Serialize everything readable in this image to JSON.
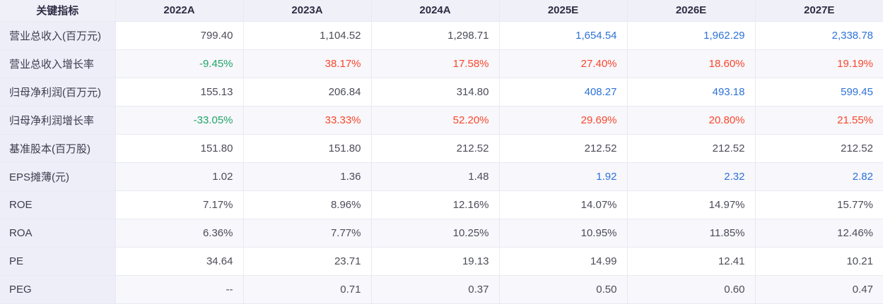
{
  "colors": {
    "positive_red": "#f9472a",
    "negative_green": "#21a567",
    "estimate_blue": "#2e72d8",
    "default_text": "#4c4c5a",
    "header_bg": "#f0f0f9",
    "first_col_bg": "#eeeef8",
    "alt_row_bg": "#f7f7fc"
  },
  "table": {
    "header": {
      "indicator_label": "关键指标",
      "year_columns": [
        "2022A",
        "2023A",
        "2024A",
        "2025E",
        "2026E",
        "2027E"
      ]
    },
    "rows": [
      {
        "label": "营业总收入(百万元)",
        "values": [
          "799.40",
          "1,104.52",
          "1,298.71",
          "1,654.54",
          "1,962.29",
          "2,338.78"
        ],
        "styles": [
          "d",
          "d",
          "d",
          "e",
          "e",
          "e"
        ]
      },
      {
        "label": "营业总收入增长率",
        "values": [
          "-9.45%",
          "38.17%",
          "17.58%",
          "27.40%",
          "18.60%",
          "19.19%"
        ],
        "styles": [
          "g",
          "r",
          "r",
          "r",
          "r",
          "r"
        ]
      },
      {
        "label": "归母净利润(百万元)",
        "values": [
          "155.13",
          "206.84",
          "314.80",
          "408.27",
          "493.18",
          "599.45"
        ],
        "styles": [
          "d",
          "d",
          "d",
          "e",
          "e",
          "e"
        ]
      },
      {
        "label": "归母净利润增长率",
        "values": [
          "-33.05%",
          "33.33%",
          "52.20%",
          "29.69%",
          "20.80%",
          "21.55%"
        ],
        "styles": [
          "g",
          "r",
          "r",
          "r",
          "r",
          "r"
        ]
      },
      {
        "label": "基准股本(百万股)",
        "values": [
          "151.80",
          "151.80",
          "212.52",
          "212.52",
          "212.52",
          "212.52"
        ],
        "styles": [
          "d",
          "d",
          "d",
          "d",
          "d",
          "d"
        ]
      },
      {
        "label": "EPS摊薄(元)",
        "values": [
          "1.02",
          "1.36",
          "1.48",
          "1.92",
          "2.32",
          "2.82"
        ],
        "styles": [
          "d",
          "d",
          "d",
          "e",
          "e",
          "e"
        ]
      },
      {
        "label": "ROE",
        "values": [
          "7.17%",
          "8.96%",
          "12.16%",
          "14.07%",
          "14.97%",
          "15.77%"
        ],
        "styles": [
          "d",
          "d",
          "d",
          "d",
          "d",
          "d"
        ]
      },
      {
        "label": "ROA",
        "values": [
          "6.36%",
          "7.77%",
          "10.25%",
          "10.95%",
          "11.85%",
          "12.46%"
        ],
        "styles": [
          "d",
          "d",
          "d",
          "d",
          "d",
          "d"
        ]
      },
      {
        "label": "PE",
        "values": [
          "34.64",
          "23.71",
          "19.13",
          "14.99",
          "12.41",
          "10.21"
        ],
        "styles": [
          "d",
          "d",
          "d",
          "d",
          "d",
          "d"
        ]
      },
      {
        "label": "PEG",
        "values": [
          "--",
          "0.71",
          "0.37",
          "0.50",
          "0.60",
          "0.47"
        ],
        "styles": [
          "d",
          "d",
          "d",
          "d",
          "d",
          "d"
        ]
      }
    ]
  }
}
